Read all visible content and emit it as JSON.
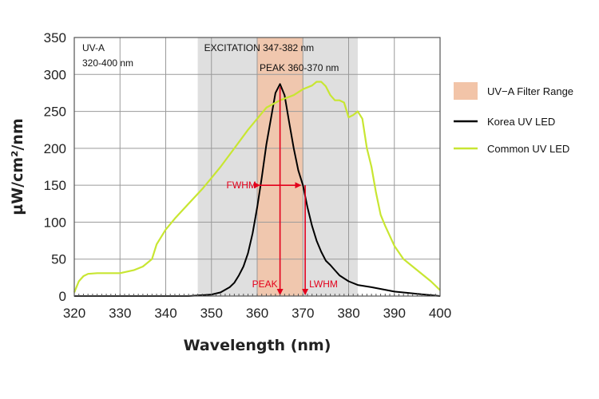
{
  "chart_data": {
    "type": "line",
    "xlabel": "Wavelength (nm)",
    "ylabel": "µW/cm²/nm",
    "xlim": [
      320,
      400
    ],
    "ylim": [
      0,
      350
    ],
    "x_ticks": [
      320,
      330,
      340,
      350,
      360,
      370,
      380,
      390,
      400
    ],
    "y_ticks": [
      0,
      50,
      100,
      150,
      200,
      250,
      300,
      350
    ],
    "grid": true,
    "legend_position": "right",
    "bands": [
      {
        "name": "EXCITATION  347-382 nm",
        "x0": 347,
        "x1": 382,
        "color": "#dcdcdc"
      },
      {
        "name": "PEAK  360-370 nm",
        "x0": 360,
        "x1": 370,
        "color": "#f2c4a8"
      }
    ],
    "legend": [
      {
        "label": "UV−A Filter Range",
        "kind": "swatch",
        "color": "#f2c4a8"
      },
      {
        "label": "Korea UV LED",
        "kind": "line",
        "color": "#000000"
      },
      {
        "label": "Common UV LED",
        "kind": "line",
        "color": "#c8e632"
      }
    ],
    "annotations": {
      "uva_box": {
        "line1": "UV-A",
        "line2": "320-400 nm"
      },
      "fwhm": {
        "label": "FWHM",
        "x0": 360.5,
        "x1": 369.5,
        "y": 150
      },
      "peak": {
        "label": "PEAK",
        "x": 365
      },
      "lwhm": {
        "label": "LWHM",
        "x": 370.5
      },
      "arrow_color": "#e3001b"
    },
    "series": [
      {
        "name": "Korea UV LED",
        "color": "#000000",
        "x": [
          320,
          345,
          350,
          352,
          354,
          355,
          356,
          357,
          358,
          359,
          360,
          361,
          362,
          363,
          364,
          365,
          366,
          367,
          368,
          369,
          370,
          371,
          372,
          373,
          374,
          375,
          376,
          377,
          378,
          380,
          382,
          385,
          390,
          395,
          400
        ],
        "y": [
          0,
          0,
          2,
          5,
          12,
          18,
          28,
          40,
          58,
          85,
          120,
          160,
          205,
          240,
          275,
          287,
          272,
          235,
          200,
          170,
          150,
          120,
          95,
          75,
          60,
          48,
          42,
          35,
          28,
          20,
          15,
          12,
          6,
          3,
          0
        ]
      },
      {
        "name": "Common UV LED",
        "color": "#c8e632",
        "x": [
          320,
          321,
          322,
          323,
          325,
          327,
          330,
          333,
          335,
          337,
          338,
          340,
          342,
          345,
          348,
          350,
          352,
          355,
          358,
          360,
          362,
          365,
          368,
          370,
          372,
          373,
          374,
          375,
          376,
          377,
          378,
          379,
          380,
          381,
          382,
          383,
          384,
          385,
          386,
          387,
          388,
          390,
          392,
          395,
          398,
          400
        ],
        "y": [
          5,
          20,
          27,
          30,
          31,
          31,
          31,
          35,
          40,
          50,
          70,
          90,
          105,
          125,
          145,
          160,
          175,
          200,
          225,
          240,
          255,
          265,
          272,
          280,
          285,
          290,
          290,
          284,
          272,
          265,
          265,
          262,
          242,
          245,
          250,
          240,
          200,
          175,
          140,
          110,
          95,
          68,
          50,
          35,
          20,
          8
        ]
      }
    ]
  }
}
